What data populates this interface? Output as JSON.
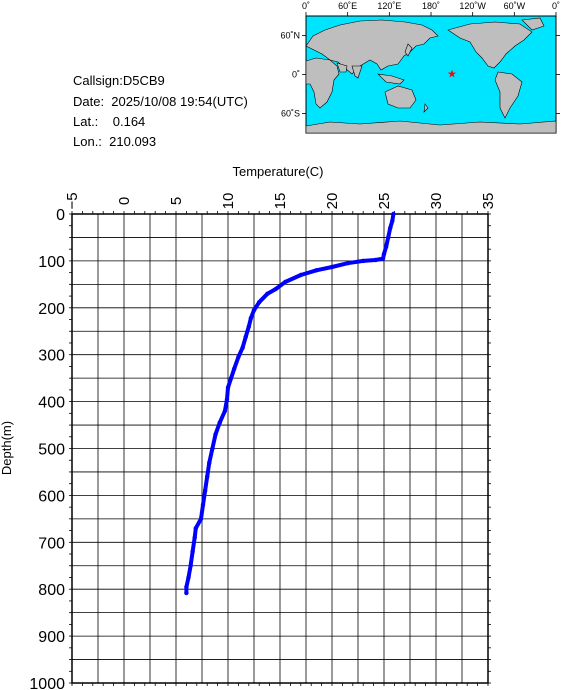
{
  "info": {
    "callsign": "Callsign:D5CB9",
    "date": "Date:  2025/10/08 19:54(UTC)",
    "lat": "Lat.:    0.164",
    "lon": "Lon.:  210.093"
  },
  "map": {
    "lon_ticks": [
      "0˚",
      "60˚E",
      "120˚E",
      "180˚",
      "120˚W",
      "60˚W",
      "0˚"
    ],
    "lat_ticks": [
      "60˚N",
      "0˚",
      "60˚S"
    ],
    "ocean_color": "#00e5ff",
    "land_color": "#bebebe",
    "marker_color": "#ff0000",
    "marker_icon": "star-icon",
    "marker_lat": 0.164,
    "marker_lon": 210.093
  },
  "chart_data": {
    "type": "line",
    "xlabel": "Temperature(C)",
    "ylabel": "Depth(m)",
    "xlim": [
      -5,
      35
    ],
    "ylim": [
      0,
      1000
    ],
    "y_inverted": true,
    "x_axis_position": "top",
    "grid": true,
    "x_ticks": [
      "−5",
      "0",
      "5",
      "10",
      "15",
      "20",
      "25",
      "30",
      "35"
    ],
    "y_ticks": [
      "0",
      "100",
      "200",
      "300",
      "400",
      "500",
      "600",
      "700",
      "800",
      "900",
      "1000"
    ],
    "series": [
      {
        "color": "#0000ff",
        "points": [
          [
            25.9,
            0
          ],
          [
            25.8,
            15
          ],
          [
            25.6,
            30
          ],
          [
            25.4,
            50
          ],
          [
            25.2,
            70
          ],
          [
            25.0,
            85
          ],
          [
            24.9,
            95
          ],
          [
            24.2,
            98
          ],
          [
            23.0,
            100
          ],
          [
            21.5,
            105
          ],
          [
            20.0,
            113
          ],
          [
            18.5,
            120
          ],
          [
            17.0,
            130
          ],
          [
            15.5,
            145
          ],
          [
            14.6,
            160
          ],
          [
            13.8,
            170
          ],
          [
            13.0,
            188
          ],
          [
            12.5,
            205
          ],
          [
            12.2,
            222
          ],
          [
            12.0,
            240
          ],
          [
            11.7,
            262
          ],
          [
            11.4,
            285
          ],
          [
            11.0,
            305
          ],
          [
            10.6,
            330
          ],
          [
            10.3,
            350
          ],
          [
            10.0,
            370
          ],
          [
            9.9,
            395
          ],
          [
            9.7,
            420
          ],
          [
            9.2,
            445
          ],
          [
            8.8,
            470
          ],
          [
            8.5,
            500
          ],
          [
            8.2,
            530
          ],
          [
            8.0,
            560
          ],
          [
            7.8,
            590
          ],
          [
            7.6,
            620
          ],
          [
            7.4,
            650
          ],
          [
            6.9,
            670
          ],
          [
            6.8,
            690
          ],
          [
            6.6,
            720
          ],
          [
            6.4,
            750
          ],
          [
            6.2,
            775
          ],
          [
            6.0,
            795
          ],
          [
            6.0,
            808
          ]
        ]
      }
    ]
  }
}
